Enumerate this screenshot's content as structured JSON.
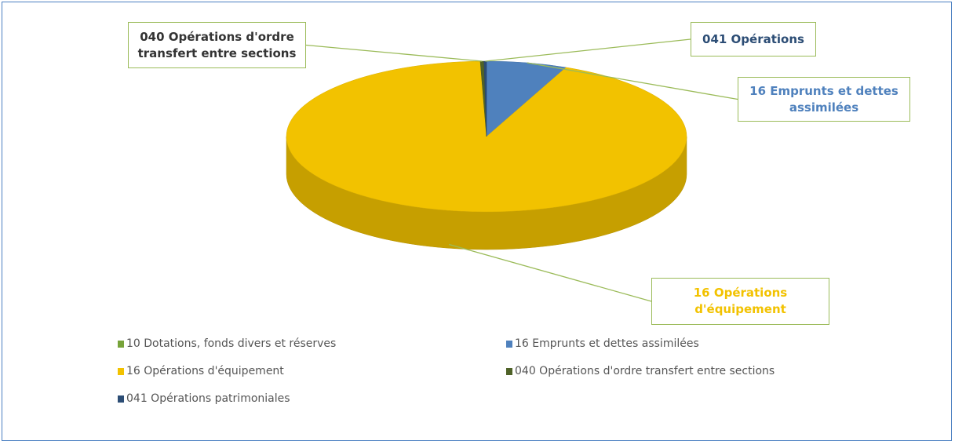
{
  "chart_data": {
    "type": "pie3d",
    "categories": [
      "10 Dotations, fonds divers et réserves",
      "16 Emprunts et dettes assimilées",
      "16 Opérations d'équipement",
      "040 Opérations d'ordre transfert entre sections",
      "041 Opérations patrimoniales"
    ],
    "values": [
      0,
      6.5,
      93,
      0.3,
      0.2
    ],
    "colors": [
      "#77a33a",
      "#4f81bd",
      "#f2c200",
      "#4f6228",
      "#2c4d75"
    ],
    "data_labels": [
      null,
      "16 Emprunts et dettes assimilées",
      "16 Opérations d'équipement",
      "040 Opérations d'ordre transfert entre sections",
      "041 Opérations"
    ],
    "legend": "bottom"
  }
}
